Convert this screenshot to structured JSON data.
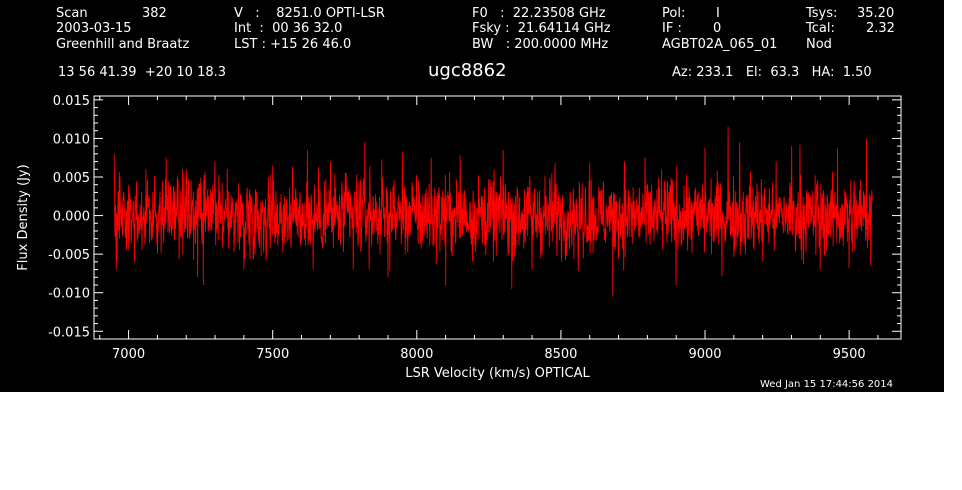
{
  "header": {
    "scan_label": "Scan",
    "scan_value": "382",
    "date": "2003-03-15",
    "observers": "Greenhill and Braatz",
    "v_line": "V   :    8251.0 OPTI-LSR",
    "int_line": "Int  :  00 36 32.0",
    "lst_line": "LST : +15 26 46.0",
    "f0_line": "F0   :  22.23508 GHz",
    "fsky_line": "Fsky :  21.64114 GHz",
    "bw_line": "BW   : 200.0000 MHz",
    "pol_label": "Pol:",
    "pol_value": "I",
    "if_label": "IF :",
    "if_value": "0",
    "project": "AGBT02A_065_01",
    "tsys_label": "Tsys:",
    "tsys_value": "35.20",
    "tcal_label": "Tcal:",
    "tcal_value": "2.32",
    "mode": "Nod",
    "coords": "13 56 41.39  +20 10 18.3",
    "object": "ugc8862",
    "az_line": "Az: 233.1   El:  63.3   HA:  1.50"
  },
  "footer": {
    "timestamp": "Wed Jan 15 17:44:56 2014"
  },
  "colors": {
    "background": "#000000",
    "axes": "#ffffff",
    "trace": "#ff0000"
  },
  "chart_data": {
    "type": "line",
    "title": "",
    "xlabel": "LSR Velocity (km/s) OPTICAL",
    "ylabel": "Flux Density (Jy)",
    "xlim": [
      6880,
      9680
    ],
    "ylim": [
      -0.016,
      0.0155
    ],
    "x_ticks": [
      7000,
      7500,
      8000,
      8500,
      9000,
      9500
    ],
    "x_tick_labels": [
      "7000",
      "7500",
      "8000",
      "8500",
      "9000",
      "9500"
    ],
    "y_ticks": [
      0.015,
      0.01,
      0.005,
      0.0,
      -0.005,
      -0.01,
      -0.015
    ],
    "y_tick_labels": [
      "0.015",
      "0.010",
      "0.005",
      "0.000",
      "-0.005",
      "-0.010",
      "-0.015"
    ],
    "series": [
      {
        "x_start": 6950,
        "x_end": 9580,
        "noise_rms": 0.0028,
        "peak_max": 0.0115,
        "peak_min": -0.0105,
        "points": [
          [
            6950,
            0.008
          ],
          [
            6958,
            -0.007
          ],
          [
            6970,
            0.005
          ],
          [
            7000,
            0.004
          ],
          [
            7020,
            -0.006
          ],
          [
            7060,
            0.006
          ],
          [
            7100,
            -0.005
          ],
          [
            7130,
            0.0075
          ],
          [
            7200,
            0.006
          ],
          [
            7240,
            -0.008
          ],
          [
            7260,
            -0.009
          ],
          [
            7300,
            0.007
          ],
          [
            7400,
            -0.007
          ],
          [
            7500,
            0.0065
          ],
          [
            7620,
            0.0085
          ],
          [
            7640,
            -0.007
          ],
          [
            7700,
            0.007
          ],
          [
            7780,
            -0.007
          ],
          [
            7820,
            0.0095
          ],
          [
            7900,
            -0.008
          ],
          [
            7950,
            0.0082
          ],
          [
            8050,
            0.0075
          ],
          [
            8100,
            -0.009
          ],
          [
            8150,
            0.0078
          ],
          [
            8300,
            0.0085
          ],
          [
            8330,
            -0.0095
          ],
          [
            8400,
            -0.007
          ],
          [
            8480,
            0.0068
          ],
          [
            8560,
            -0.0072
          ],
          [
            8600,
            0.0068
          ],
          [
            8680,
            -0.0105
          ],
          [
            8720,
            0.007
          ],
          [
            8850,
            0.006
          ],
          [
            8900,
            -0.009
          ],
          [
            9000,
            0.0088
          ],
          [
            9080,
            0.0115
          ],
          [
            9120,
            0.0095
          ],
          [
            9200,
            -0.006
          ],
          [
            9300,
            0.009
          ],
          [
            9330,
            0.0092
          ],
          [
            9400,
            -0.007
          ],
          [
            9460,
            0.0087
          ],
          [
            9500,
            -0.0068
          ],
          [
            9560,
            0.01
          ],
          [
            9575,
            -0.0065
          ]
        ]
      }
    ]
  }
}
